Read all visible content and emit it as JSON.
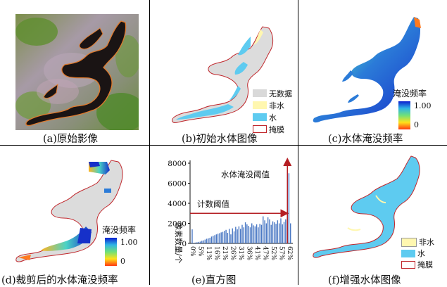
{
  "panels": {
    "a": {
      "caption": "(a)原始影像"
    },
    "b": {
      "caption": "(b)初始水体图像",
      "legend": [
        "无数据",
        "非水",
        "水",
        "掩膜"
      ]
    },
    "c": {
      "caption": "(c)水体淹没频率",
      "legend_title": "淹没频率",
      "max_label": "1.00",
      "min_label": "0"
    },
    "d": {
      "caption": "(d)裁剪后的水体淹没频率",
      "legend_title": "淹没频率",
      "max_label": "1.00",
      "min_label": "0"
    },
    "e": {
      "caption": "(e)直方图",
      "annotation_threshold": "水体淹没阈值",
      "annotation_count": "计数阈值"
    },
    "f": {
      "caption": "(f)增强水体图像",
      "legend": [
        "非水",
        "水",
        "掩膜"
      ]
    }
  },
  "colors": {
    "nodata": "#d9d9d9",
    "nonwater": "#fff7b0",
    "water": "#5ecbf0",
    "mask": "#c0262b",
    "arrow": "#b51f24"
  },
  "chart_data": {
    "type": "bar",
    "ylabel": "像素数量/个",
    "yticks": [
      0,
      2000,
      4000,
      6000,
      8000
    ],
    "ylim": [
      0,
      8000
    ],
    "xticks": [
      "0%",
      "5%",
      "11%",
      "16%",
      "21%",
      "26%",
      "31%",
      "36%",
      "41%",
      "47%",
      "52%",
      "57%",
      "62%"
    ],
    "values": [
      1400,
      60,
      80,
      110,
      150,
      180,
      260,
      300,
      380,
      460,
      500,
      560,
      680,
      760,
      820,
      900,
      960,
      1020,
      1100,
      1150,
      1250,
      1350,
      1050,
      1450,
      900,
      1500,
      1200,
      1650,
      1400,
      1700,
      1450,
      1850,
      1600,
      2100,
      1900,
      1750,
      1600,
      2000,
      1800,
      1700,
      1900,
      1600,
      1950,
      1850,
      2700,
      2300,
      2000,
      2600,
      2400,
      1850,
      2200,
      2100,
      1950,
      2300,
      2000,
      2500,
      1900,
      2150,
      2400,
      2600,
      7000,
      2000
    ],
    "count_threshold": 3000,
    "water_threshold_index": 59
  }
}
